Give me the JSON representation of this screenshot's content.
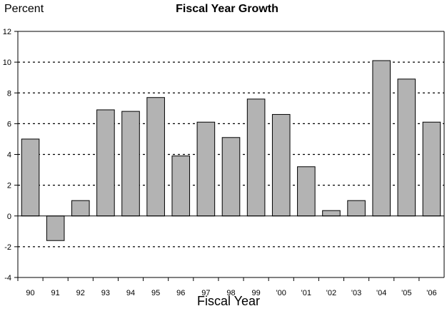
{
  "chart_data": {
    "type": "bar",
    "title": "Fiscal Year Growth",
    "ylabel": "Percent",
    "xlabel": "Fiscal Year",
    "categories": [
      "90",
      "91",
      "92",
      "93",
      "94",
      "95",
      "96",
      "97",
      "98",
      "99",
      "'00",
      "'01",
      "'02",
      "'03",
      "'04",
      "'05",
      "'06"
    ],
    "values": [
      5.0,
      -1.6,
      1.0,
      6.9,
      6.8,
      7.7,
      3.9,
      6.1,
      5.1,
      7.6,
      6.6,
      3.2,
      0.35,
      1.0,
      10.1,
      8.9,
      6.1
    ],
    "ylim": [
      -4,
      12
    ],
    "yticks": [
      -4,
      -2,
      0,
      2,
      4,
      6,
      8,
      10,
      12
    ],
    "grid": "dotted horizontal",
    "bar_color": "#b3b3b3"
  }
}
